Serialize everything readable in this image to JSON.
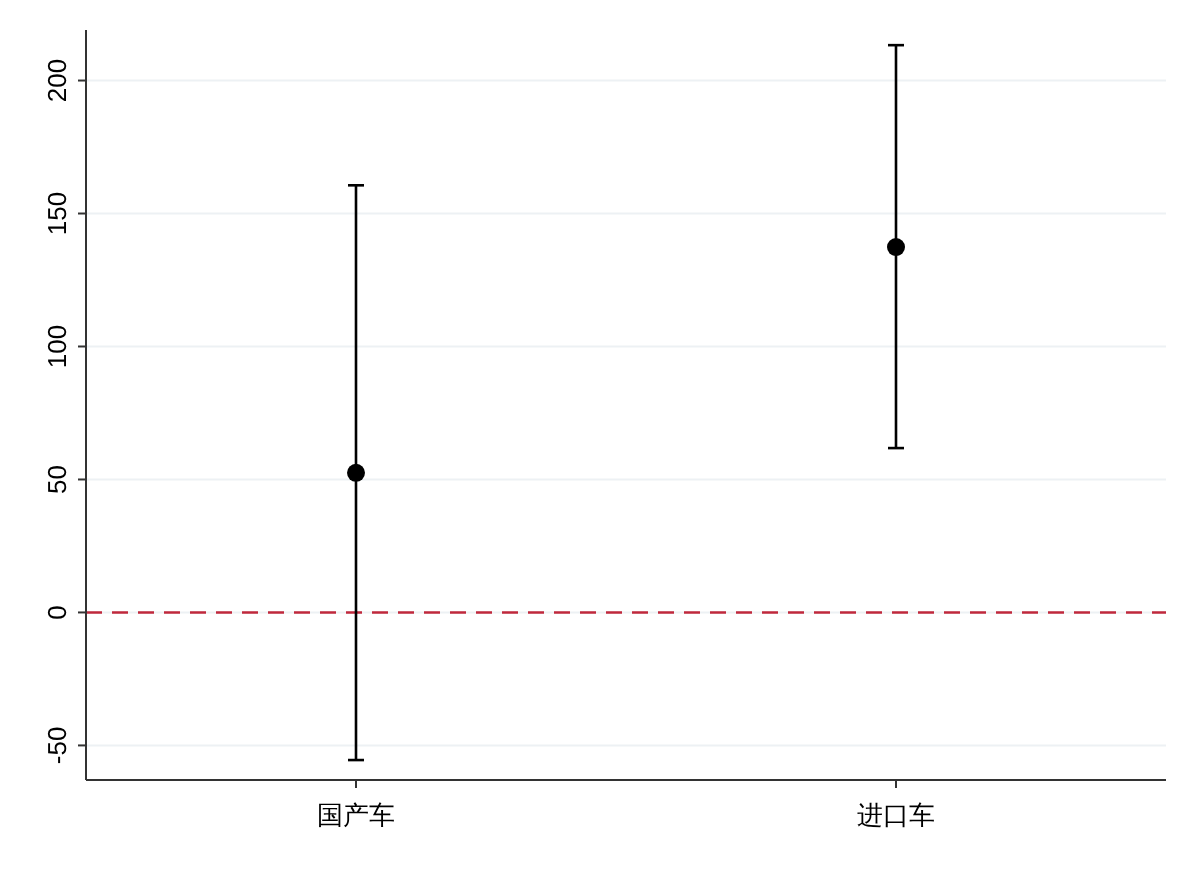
{
  "chart_data": {
    "type": "scatter",
    "categories": [
      "国产车",
      "进口车"
    ],
    "series": [
      {
        "color": "#000000",
        "values": [
          52.5,
          137.4
        ],
        "errors": [
          [
            -55.5,
            160.6
          ],
          [
            61.8,
            213.3
          ]
        ]
      }
    ],
    "marker": "circle",
    "ylim": [
      -63,
      219
    ],
    "yticks": [
      -50,
      0,
      50,
      100,
      150,
      200
    ],
    "grid": "y",
    "ref_lines": [
      {
        "axis": "y",
        "value": 0,
        "color": "#c0283c",
        "line_style": "dashed"
      }
    ]
  }
}
